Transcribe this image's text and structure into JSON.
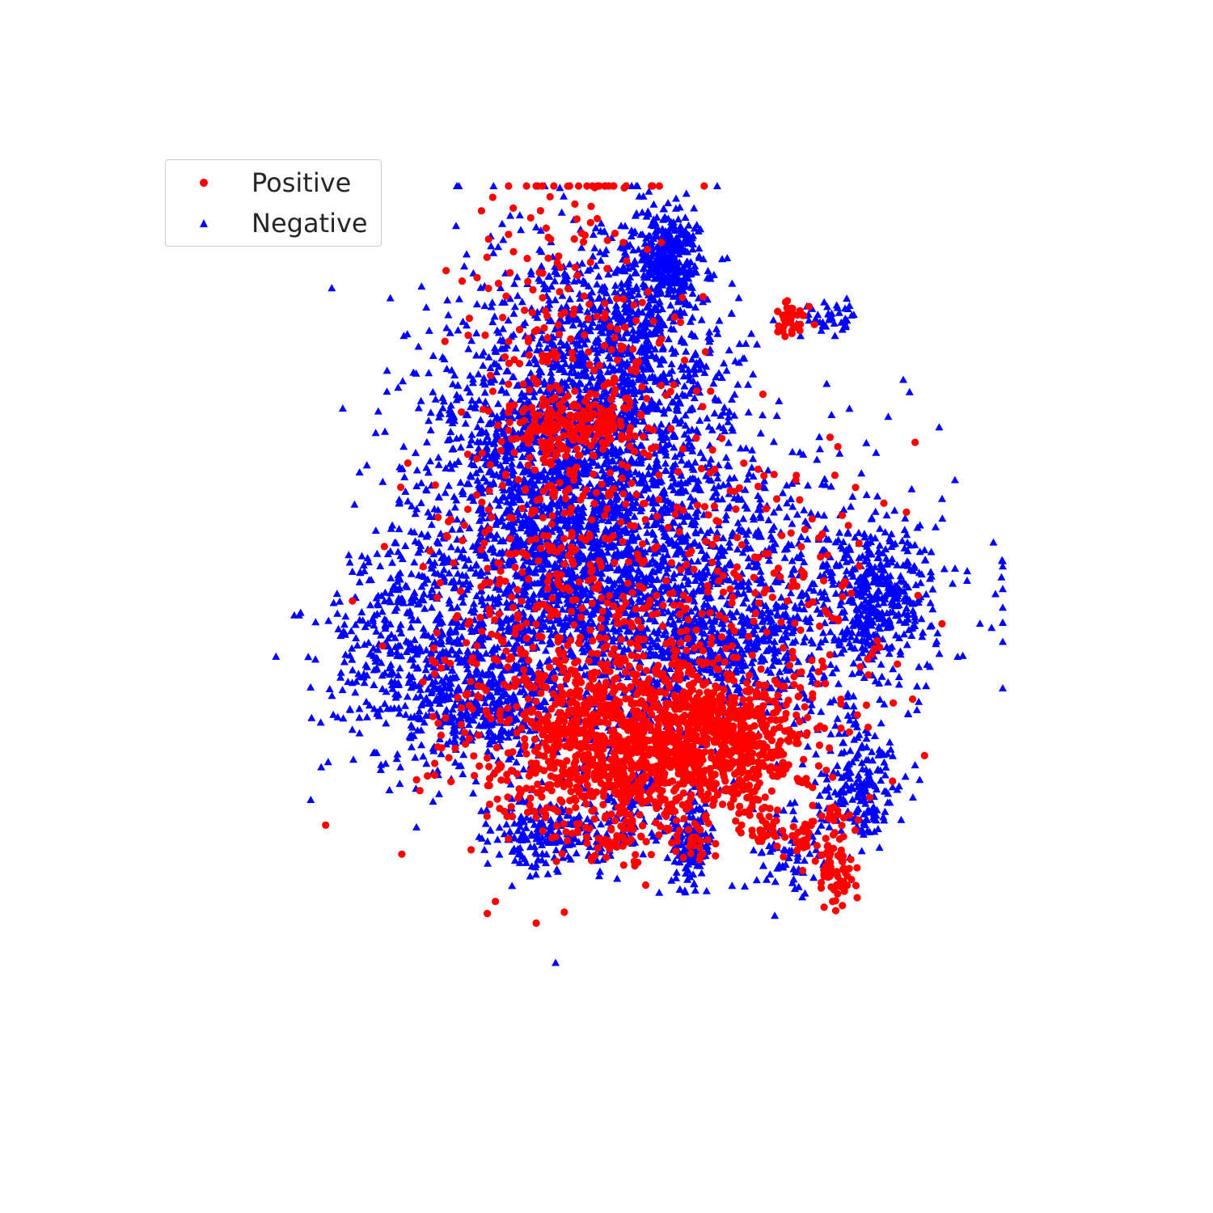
{
  "chart_data": {
    "type": "scatter",
    "title": "",
    "xlabel": "",
    "ylabel": "",
    "axes_visible": false,
    "grid": false,
    "xlim": [
      -100,
      100
    ],
    "ylim": [
      -100,
      100
    ],
    "legend": {
      "placement": "top-left",
      "entries": [
        {
          "name": "Positive",
          "color": "#ff0000",
          "marker": "circle"
        },
        {
          "name": "Negative",
          "color": "#0000ff",
          "marker": "triangle"
        }
      ]
    },
    "series": [
      {
        "name": "Positive",
        "color": "#ff0000",
        "marker": "circle",
        "clusters": [
          {
            "cx": 7,
            "cy": -30,
            "sx": 20,
            "sy": 10,
            "n": 1150
          },
          {
            "cx": 30,
            "cy": -29,
            "sx": 9,
            "sy": 8,
            "n": 260
          },
          {
            "cx": -16,
            "cy": 43,
            "sx": 6,
            "sy": 3,
            "n": 90
          },
          {
            "cx": -5,
            "cy": 45,
            "sx": 3,
            "sy": 3,
            "n": 50
          },
          {
            "cx": 44,
            "cy": 69,
            "sx": 2,
            "sy": 2,
            "n": 45
          },
          {
            "cx": 56,
            "cy": -61,
            "sx": 3,
            "sy": 4,
            "n": 70
          },
          {
            "cx": 55,
            "cy": -48,
            "sx": 3,
            "sy": 3,
            "n": 22
          },
          {
            "cx": 47,
            "cy": -52,
            "sx": 2,
            "sy": 2,
            "n": 25
          },
          {
            "cx": -3,
            "cy": -53,
            "sx": 8,
            "sy": 2,
            "n": 45
          },
          {
            "cx": 20,
            "cy": -53,
            "sx": 2,
            "sy": 2,
            "n": 15
          },
          {
            "cx": 37,
            "cy": -51,
            "sx": 2,
            "sy": 3,
            "n": 20
          },
          {
            "cx": -12,
            "cy": 34,
            "sx": 15,
            "sy": 40,
            "n": 600
          },
          {
            "cx": 36,
            "cy": 4,
            "sx": 20,
            "sy": 20,
            "n": 200
          },
          {
            "cx": -32,
            "cy": -3,
            "sx": 15,
            "sy": 18,
            "n": 120
          },
          {
            "cx": -5,
            "cy": -38,
            "sx": 20,
            "sy": 5,
            "n": 120
          }
        ]
      },
      {
        "name": "Negative",
        "color": "#0000ff",
        "marker": "triangle",
        "clusters": [
          {
            "cx": -14,
            "cy": 28,
            "sx": 19,
            "sy": 26,
            "n": 2900
          },
          {
            "cx": 19,
            "cy": 4,
            "sx": 30,
            "sy": 17,
            "n": 1300
          },
          {
            "cx": 2,
            "cy": 64,
            "sx": 12,
            "sy": 12,
            "n": 550
          },
          {
            "cx": 11,
            "cy": 84,
            "sx": 4,
            "sy": 5,
            "n": 300
          },
          {
            "cx": -55,
            "cy": -9,
            "sx": 13,
            "sy": 13,
            "n": 500
          },
          {
            "cx": -35,
            "cy": -22,
            "sx": 10,
            "sy": 6,
            "n": 250
          },
          {
            "cx": -22,
            "cy": -52,
            "sx": 7,
            "sy": 4,
            "n": 140
          },
          {
            "cx": 18,
            "cy": -53,
            "sx": 3,
            "sy": 5,
            "n": 160
          },
          {
            "cx": 62,
            "cy": -40,
            "sx": 5,
            "sy": 7,
            "n": 190
          },
          {
            "cx": 55,
            "cy": 69,
            "sx": 5,
            "sy": 2,
            "n": 45
          },
          {
            "cx": 66,
            "cy": 4,
            "sx": 8,
            "sy": 8,
            "n": 350
          },
          {
            "cx": -7,
            "cy": -50,
            "sx": 10,
            "sy": 4,
            "n": 110
          },
          {
            "cx": 3,
            "cy": -41,
            "sx": 3,
            "sy": 3,
            "n": 50
          },
          {
            "cx": 43,
            "cy": -55,
            "sx": 5,
            "sy": 6,
            "n": 70
          },
          {
            "cx": 30,
            "cy": -10,
            "sx": 12,
            "sy": 7,
            "n": 250
          }
        ]
      }
    ]
  }
}
